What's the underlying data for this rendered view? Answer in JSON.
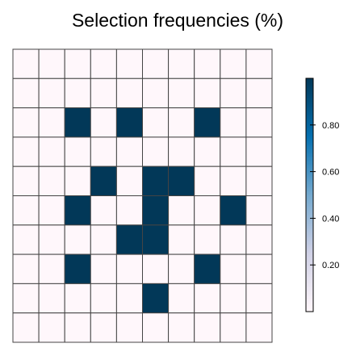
{
  "chart_data": {
    "type": "heatmap",
    "title": "Selection frequencies (%)",
    "xlabel": "",
    "ylabel": "",
    "rows": 10,
    "cols": 10,
    "values": [
      [
        0,
        0,
        0,
        0,
        0,
        0,
        0,
        0,
        0,
        0
      ],
      [
        0,
        0,
        0,
        0,
        0,
        0,
        0,
        0,
        0,
        0
      ],
      [
        0,
        0,
        1,
        0,
        1,
        0,
        0,
        1,
        0,
        0
      ],
      [
        0,
        0,
        0,
        0,
        0,
        0,
        0,
        0,
        0,
        0
      ],
      [
        0,
        0,
        0,
        1,
        0,
        1,
        1,
        0,
        0,
        0
      ],
      [
        0,
        0,
        1,
        0,
        0,
        1,
        0,
        0,
        1,
        0
      ],
      [
        0,
        0,
        0,
        0,
        1,
        1,
        0,
        0,
        0,
        0
      ],
      [
        0,
        0,
        1,
        0,
        0,
        0,
        0,
        1,
        0,
        0
      ],
      [
        0,
        0,
        0,
        0,
        0,
        1,
        0,
        0,
        0,
        0
      ],
      [
        0,
        0,
        0,
        0,
        0,
        0,
        0,
        0,
        0,
        0
      ]
    ],
    "colorbar": {
      "range": [
        0,
        1
      ],
      "ticks": [
        0.2,
        0.4,
        0.6,
        0.8
      ],
      "tick_labels": [
        "0.20",
        "0.40",
        "0.60",
        "0.80"
      ],
      "colors": [
        "#fff7fb",
        "#d0d1e6",
        "#74a9cf",
        "#0570b0",
        "#023858"
      ]
    },
    "grid": true,
    "cell_border_color": "#444444",
    "low_color": "#fff7fb",
    "high_color": "#023858"
  }
}
